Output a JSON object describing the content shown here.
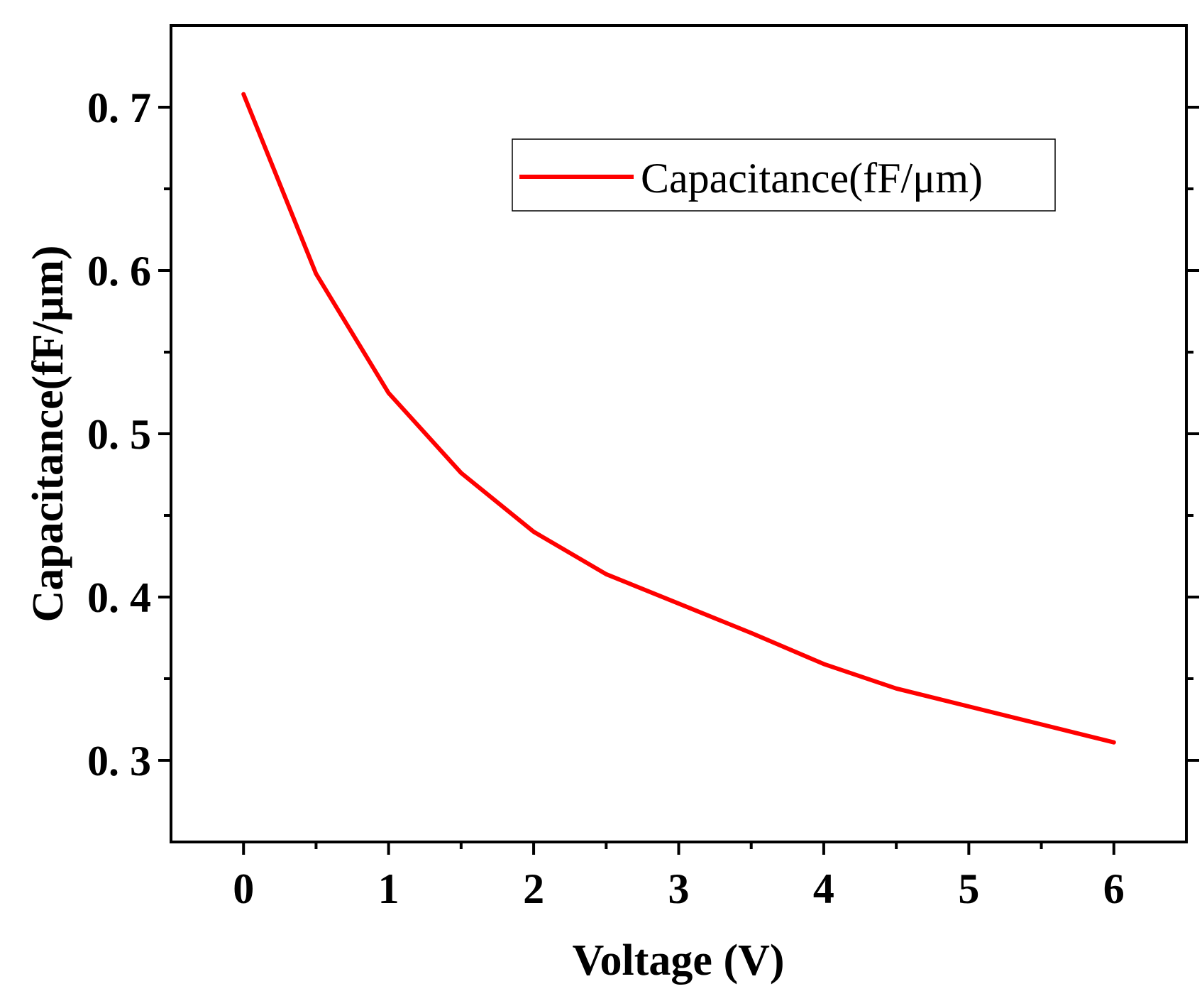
{
  "chart_data": {
    "type": "line",
    "title": "",
    "xlabel": "Voltage (V)",
    "ylabel": "Capacitance(fF/μm)",
    "xlim": [
      -0.5,
      6.5
    ],
    "ylim": [
      0.25,
      0.75
    ],
    "x_ticks": [
      0,
      1,
      2,
      3,
      4,
      5,
      6
    ],
    "x_tick_labels": [
      "0",
      "1",
      "2",
      "3",
      "4",
      "5",
      "6"
    ],
    "y_ticks": [
      0.3,
      0.4,
      0.5,
      0.6,
      0.7
    ],
    "y_tick_labels": [
      "0. 3",
      "0. 4",
      "0. 5",
      "0. 6",
      "0. 7"
    ],
    "grid": false,
    "legend_position": "top-right",
    "series": [
      {
        "name": "Capacitance(fF/μm)",
        "color": "#ff0000",
        "x": [
          0,
          0.5,
          1,
          1.5,
          2,
          2.5,
          3,
          3.5,
          4,
          4.5,
          5,
          5.5,
          6
        ],
        "values": [
          0.708,
          0.598,
          0.525,
          0.476,
          0.44,
          0.414,
          0.396,
          0.378,
          0.359,
          0.344,
          0.333,
          0.322,
          0.311
        ]
      }
    ]
  }
}
